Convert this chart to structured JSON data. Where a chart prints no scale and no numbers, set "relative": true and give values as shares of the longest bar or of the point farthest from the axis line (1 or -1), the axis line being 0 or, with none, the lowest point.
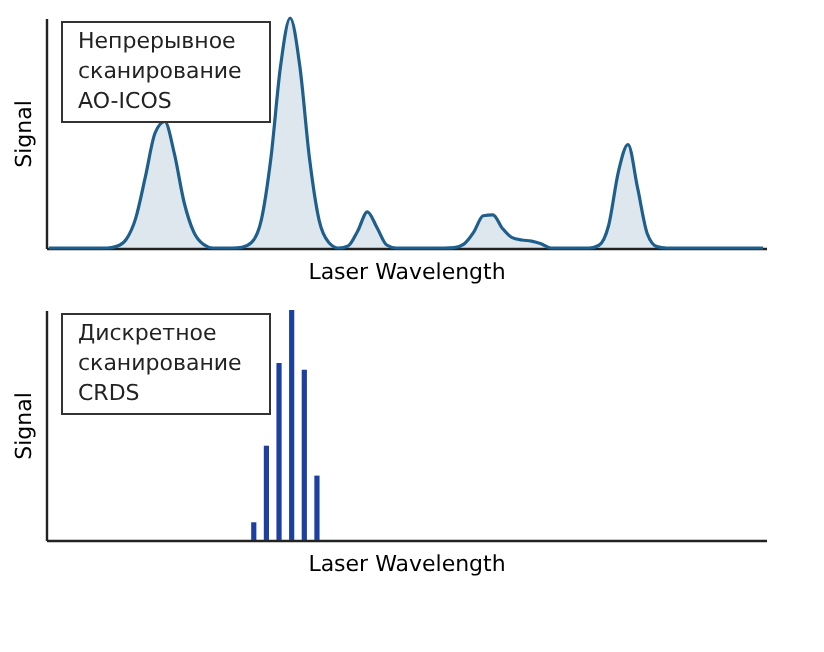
{
  "chart_data": [
    {
      "type": "area",
      "relative": true,
      "xlabel": "Laser Wavelength",
      "ylabel": "Signal",
      "tick_labels": false,
      "color": "#1f5f8b",
      "annotations": [
        "Непрерывное\nсканирование\nAO-ICOS"
      ],
      "categories": [
        null,
        null,
        null,
        null,
        null,
        null,
        null,
        null,
        null,
        null,
        null,
        null,
        null,
        null,
        null,
        null,
        null,
        null,
        null,
        null,
        null,
        null,
        null,
        null,
        null,
        null,
        null,
        null,
        null,
        null,
        null,
        null,
        null,
        null,
        null,
        null,
        null,
        null,
        null,
        null,
        null,
        null,
        null,
        null,
        null,
        null,
        null,
        null,
        null,
        null,
        null,
        null,
        null,
        null,
        null,
        null,
        null,
        null,
        null,
        null,
        null,
        null,
        null,
        null,
        null,
        null,
        null,
        null,
        null,
        null,
        null,
        null,
        null,
        null,
        null
      ],
      "values": [
        0,
        0,
        0,
        0,
        0,
        0,
        0,
        0.007,
        0.037,
        0.13,
        0.31,
        0.5,
        0.55,
        0.41,
        0.2,
        0.07,
        0.016,
        0,
        0,
        0,
        0.003,
        0.024,
        0.12,
        0.39,
        0.79,
        1,
        0.79,
        0.39,
        0.12,
        0.024,
        0,
        0.009,
        0.074,
        0.157,
        0.088,
        0.013,
        0,
        0,
        0,
        0,
        0,
        0,
        0.002,
        0.017,
        0.068,
        0.14,
        0.144,
        0.085,
        0.045,
        0.035,
        0.03,
        0.018,
        0,
        0,
        0,
        0,
        0,
        0.012,
        0.099,
        0.33,
        0.45,
        0.26,
        0.062,
        0.006,
        0,
        0,
        0,
        0,
        0,
        0,
        0,
        0,
        0,
        0,
        0
      ]
    },
    {
      "type": "bar",
      "relative": true,
      "xlabel": "Laser Wavelength",
      "ylabel": "Signal",
      "tick_labels": false,
      "color": "#1c3fa0",
      "annotations": [
        "Дискретное\nсканирование\nCRDS"
      ],
      "categories": [
        null,
        null,
        null,
        null,
        null,
        null
      ],
      "values": [
        0.077,
        0.41,
        0.77,
        1,
        0.74,
        0.28
      ]
    }
  ]
}
